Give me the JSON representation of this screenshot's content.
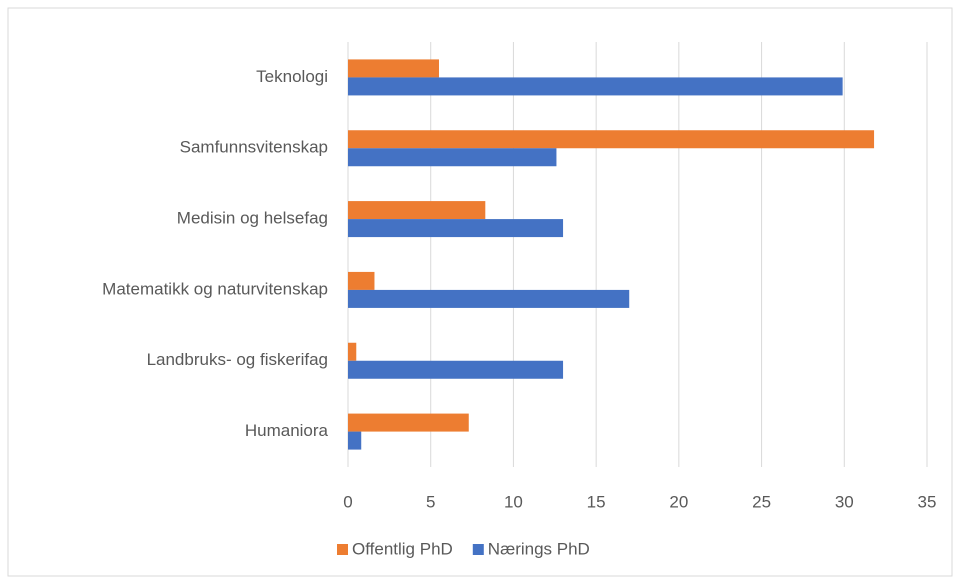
{
  "chart_data": {
    "type": "bar",
    "orientation": "horizontal",
    "categories": [
      "Teknologi",
      "Samfunnsvitenskap",
      "Medisin og helsefag",
      "Matematikk og naturvitenskap",
      "Landbruks- og fiskerifag",
      "Humaniora"
    ],
    "series": [
      {
        "name": "Offentlig PhD",
        "color": "#ed7d31",
        "values": [
          5.5,
          31.8,
          8.3,
          1.6,
          0.5,
          7.3
        ]
      },
      {
        "name": "Nærings PhD",
        "color": "#4472c4",
        "values": [
          29.9,
          12.6,
          13.0,
          17.0,
          13.0,
          0.8
        ]
      }
    ],
    "xlim": [
      0,
      35
    ],
    "xticks": [
      0,
      5,
      10,
      15,
      20,
      25,
      30,
      35
    ],
    "grid": true,
    "legend": "bottom"
  }
}
